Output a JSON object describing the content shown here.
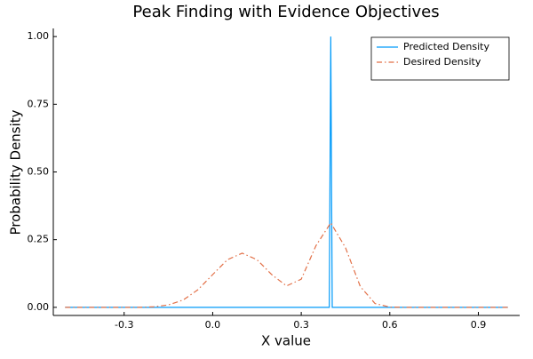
{
  "chart_data": {
    "type": "line",
    "title": "Peak Finding with Evidence Objectives",
    "x_label": "X value",
    "y_label": "Probability Density",
    "xlim": [
      -0.54,
      1.04
    ],
    "ylim": [
      -0.03,
      1.03
    ],
    "xticks": [
      -0.3,
      {
        "value": 0,
        "label": "0.0"
      },
      0.3,
      0.6,
      0.9
    ],
    "yticks": [
      {
        "value": 0,
        "label": "0.00"
      },
      0.25,
      {
        "value": 0.5,
        "label": "0.50"
      },
      0.75,
      {
        "value": 1,
        "label": "1.00"
      }
    ],
    "grid": false,
    "legend_position": "top-right",
    "series": [
      {
        "name": "Predicted Density",
        "color": "#009af9",
        "dash": "solid",
        "x": [
          -0.5,
          0.395,
          0.4,
          0.405,
          1.0
        ],
        "values": [
          0,
          0,
          1,
          0,
          0
        ]
      },
      {
        "name": "Desired Density",
        "color": "#e26f46",
        "dash": "dashdot",
        "x": [
          -0.5,
          -0.45,
          -0.4,
          -0.35,
          -0.3,
          -0.25,
          -0.2,
          -0.15,
          -0.1,
          -0.05,
          0,
          0.05,
          0.1,
          0.15,
          0.2,
          0.25,
          0.3,
          0.35,
          0.4,
          0.45,
          0.5,
          0.55,
          0.6,
          0.65,
          0.7,
          0.75,
          0.8,
          0.85,
          0.9,
          0.95,
          1.0
        ],
        "values": [
          0,
          0,
          0,
          0,
          0,
          0,
          0.002,
          0.009,
          0.027,
          0.065,
          0.121,
          0.176,
          0.2,
          0.176,
          0.121,
          0.079,
          0.104,
          0.228,
          0.312,
          0.22,
          0.077,
          0.014,
          0.001,
          0,
          0,
          0,
          0,
          0,
          0,
          0,
          0
        ]
      }
    ]
  }
}
